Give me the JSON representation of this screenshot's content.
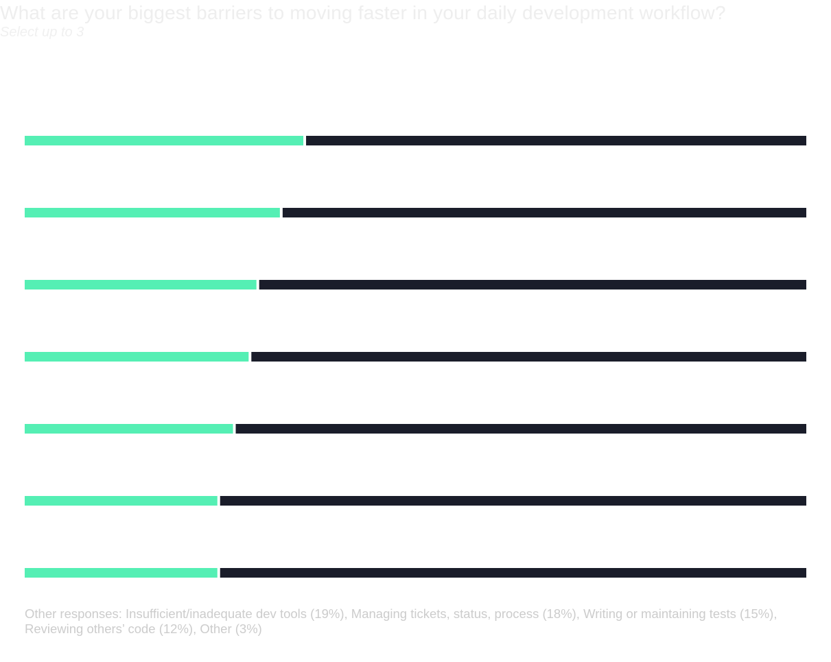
{
  "chart_data": {
    "type": "bar",
    "orientation": "horizontal",
    "stacked": true,
    "title": "What are your biggest barriers to moving faster in your daily development workflow?",
    "subtitle": "Select up to 3",
    "xlim": [
      0,
      100
    ],
    "grid": false,
    "legend": "none",
    "series": [
      {
        "values": [
          36,
          33,
          30,
          29,
          27,
          25,
          25
        ]
      },
      {
        "values": [
          64,
          67,
          70,
          71,
          73,
          75,
          75
        ]
      }
    ],
    "footnote": "Other responses: Insufficient/inadequate dev tools (19%), Managing tickets, status, process (18%), Writing or maintaining tests (15%), Reviewing others’ code (12%), Other (3%)"
  },
  "colors": {
    "primary_series": "#55efb4",
    "remainder_series": "#1a1d2a",
    "title_text": "#eeeeee",
    "subtitle_text": "#f0f0f0",
    "footnote_text": "#cccccc",
    "background": "#ffffff"
  }
}
